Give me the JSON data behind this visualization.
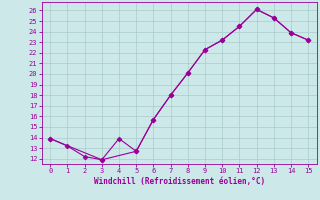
{
  "line1_x": [
    0,
    1,
    2,
    3,
    4,
    5,
    6,
    7,
    8,
    9,
    10,
    11,
    12,
    13,
    14,
    15
  ],
  "line1_y": [
    13.9,
    13.2,
    12.2,
    11.9,
    13.9,
    12.7,
    15.7,
    18.0,
    20.1,
    22.3,
    23.2,
    24.5,
    26.1,
    25.3,
    23.9,
    23.2
  ],
  "line2_x": [
    0,
    3,
    5,
    6,
    7,
    8,
    9,
    10,
    11,
    12,
    13,
    14,
    15
  ],
  "line2_y": [
    13.9,
    11.9,
    12.7,
    15.7,
    18.0,
    20.1,
    22.3,
    23.2,
    24.5,
    26.1,
    25.3,
    23.9,
    23.2
  ],
  "color": "#990099",
  "bg_color": "#cce8e8",
  "grid_color": "#aacccc",
  "xlabel": "Windchill (Refroidissement éolien,°C)",
  "xlim": [
    -0.5,
    15.5
  ],
  "ylim": [
    11.5,
    26.8
  ],
  "yticks": [
    12,
    13,
    14,
    15,
    16,
    17,
    18,
    19,
    20,
    21,
    22,
    23,
    24,
    25,
    26
  ],
  "xticks": [
    0,
    1,
    2,
    3,
    4,
    5,
    6,
    7,
    8,
    9,
    10,
    11,
    12,
    13,
    14,
    15
  ],
  "marker": "D",
  "markersize": 2.5,
  "linewidth": 0.8
}
